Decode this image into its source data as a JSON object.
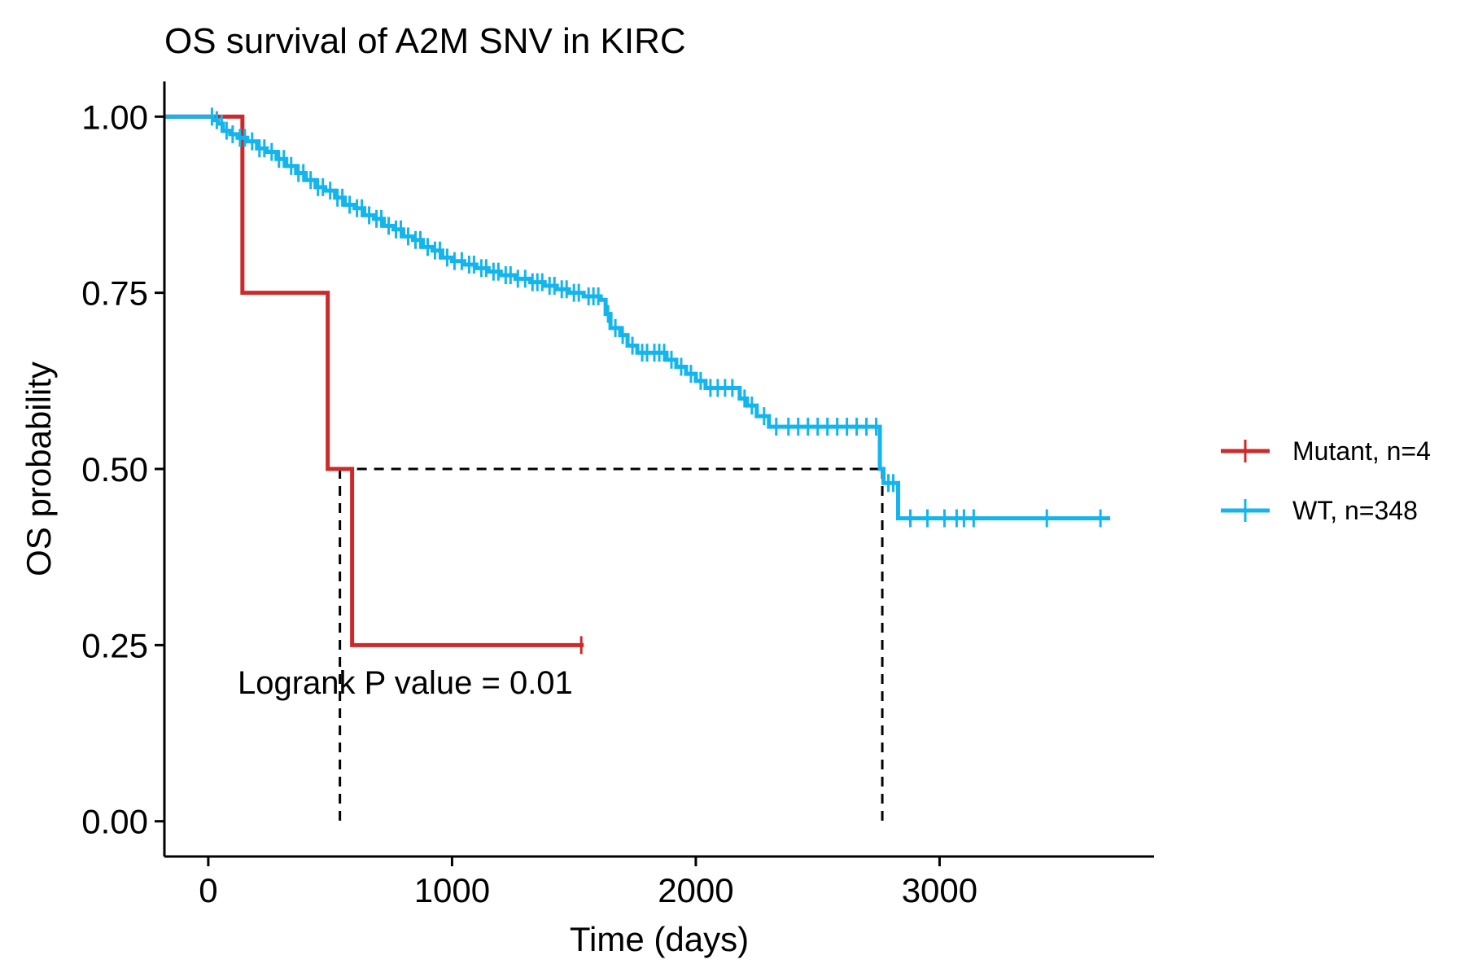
{
  "chart_data": {
    "type": "line",
    "title": "OS survival of A2M SNV in KIRC",
    "xlabel": "Time (days)",
    "ylabel": "OS probability",
    "xlim": [
      -180,
      3880
    ],
    "ylim": [
      -0.05,
      1.05
    ],
    "x_ticks": [
      0,
      1000,
      2000,
      3000
    ],
    "x_tick_labels": [
      "0",
      "1000",
      "2000",
      "3000"
    ],
    "y_ticks": [
      0,
      0.25,
      0.5,
      0.75,
      1.0
    ],
    "y_tick_labels": [
      "0.00",
      "0.25",
      "0.50",
      "0.75",
      "1.00"
    ],
    "grid": false,
    "legend_position": "right",
    "annotation": "Logrank P value = 0.01",
    "median_line_y": 0.5,
    "median_x": [
      540,
      2765
    ],
    "series": [
      {
        "name": "Mutant, n=4",
        "color": "#CC2A2A",
        "steps": [
          [
            0,
            1.0
          ],
          [
            140,
            0.75
          ],
          [
            490,
            0.5
          ],
          [
            590,
            0.25
          ]
        ],
        "end_x": 1540,
        "censor_x": [
          1530
        ]
      },
      {
        "name": "WT, n=348",
        "color": "#14B4EC",
        "steps": [
          [
            0,
            1.0
          ],
          [
            20,
            0.995
          ],
          [
            40,
            0.99
          ],
          [
            60,
            0.98
          ],
          [
            90,
            0.975
          ],
          [
            120,
            0.97
          ],
          [
            160,
            0.965
          ],
          [
            200,
            0.955
          ],
          [
            240,
            0.95
          ],
          [
            280,
            0.94
          ],
          [
            320,
            0.93
          ],
          [
            360,
            0.92
          ],
          [
            400,
            0.91
          ],
          [
            440,
            0.9
          ],
          [
            480,
            0.895
          ],
          [
            520,
            0.885
          ],
          [
            560,
            0.875
          ],
          [
            600,
            0.87
          ],
          [
            640,
            0.86
          ],
          [
            680,
            0.855
          ],
          [
            720,
            0.845
          ],
          [
            760,
            0.84
          ],
          [
            800,
            0.83
          ],
          [
            840,
            0.825
          ],
          [
            880,
            0.815
          ],
          [
            920,
            0.81
          ],
          [
            960,
            0.8
          ],
          [
            1000,
            0.795
          ],
          [
            1050,
            0.79
          ],
          [
            1100,
            0.785
          ],
          [
            1150,
            0.78
          ],
          [
            1200,
            0.775
          ],
          [
            1260,
            0.77
          ],
          [
            1320,
            0.765
          ],
          [
            1380,
            0.76
          ],
          [
            1430,
            0.755
          ],
          [
            1480,
            0.75
          ],
          [
            1540,
            0.745
          ],
          [
            1610,
            0.74
          ],
          [
            1630,
            0.72
          ],
          [
            1650,
            0.7
          ],
          [
            1690,
            0.69
          ],
          [
            1720,
            0.675
          ],
          [
            1760,
            0.665
          ],
          [
            1880,
            0.655
          ],
          [
            1920,
            0.645
          ],
          [
            1960,
            0.635
          ],
          [
            2000,
            0.625
          ],
          [
            2040,
            0.615
          ],
          [
            2180,
            0.6
          ],
          [
            2210,
            0.59
          ],
          [
            2250,
            0.575
          ],
          [
            2300,
            0.56
          ],
          [
            2755,
            0.5
          ],
          [
            2770,
            0.48
          ],
          [
            2830,
            0.43
          ]
        ],
        "end_x": 3700,
        "censor_x": [
          15,
          35,
          55,
          75,
          100,
          130,
          150,
          180,
          210,
          230,
          260,
          290,
          310,
          340,
          370,
          390,
          420,
          450,
          470,
          500,
          530,
          550,
          580,
          610,
          630,
          660,
          690,
          710,
          740,
          770,
          790,
          820,
          850,
          870,
          900,
          930,
          950,
          980,
          1010,
          1040,
          1070,
          1090,
          1120,
          1140,
          1170,
          1190,
          1220,
          1240,
          1270,
          1300,
          1330,
          1350,
          1370,
          1400,
          1420,
          1450,
          1470,
          1500,
          1520,
          1560,
          1580,
          1600,
          1640,
          1670,
          1700,
          1740,
          1780,
          1800,
          1830,
          1850,
          1870,
          1900,
          1940,
          1980,
          2020,
          2060,
          2090,
          2120,
          2150,
          2200,
          2230,
          2280,
          2330,
          2380,
          2420,
          2460,
          2500,
          2540,
          2580,
          2620,
          2660,
          2700,
          2740,
          2790,
          2810,
          2880,
          2950,
          3020,
          3070,
          3100,
          3140,
          3440,
          3660
        ]
      }
    ]
  }
}
